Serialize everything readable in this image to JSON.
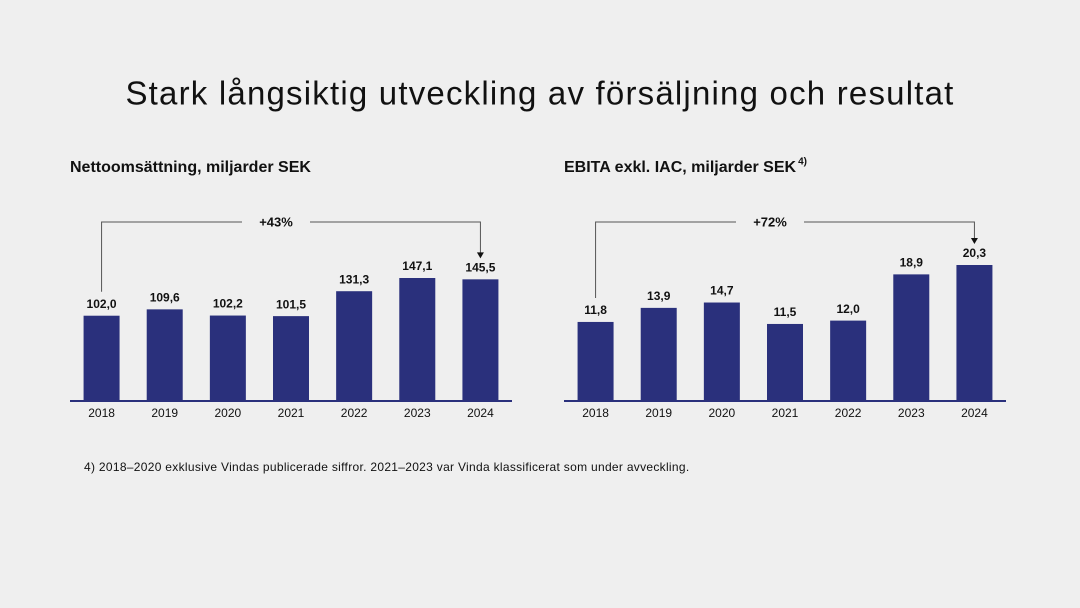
{
  "title": "Stark långsiktig utveckling av försäljning och resultat",
  "chart_data": [
    {
      "type": "bar",
      "title": "Nettoomsättning, miljarder SEK",
      "annotation": "+43%",
      "categories": [
        "2018",
        "2019",
        "2020",
        "2021",
        "2022",
        "2023",
        "2024"
      ],
      "values": [
        102.0,
        109.6,
        102.2,
        101.5,
        131.3,
        147.1,
        145.5
      ],
      "value_labels": [
        "102,0",
        "109,6",
        "102,2",
        "101,5",
        "131,3",
        "147,1",
        "145,5"
      ],
      "color": "#2a307c"
    },
    {
      "type": "bar",
      "title": "EBITA exkl. IAC, miljarder SEK",
      "title_note": "4)",
      "annotation": "+72%",
      "categories": [
        "2018",
        "2019",
        "2020",
        "2021",
        "2022",
        "2023",
        "2024"
      ],
      "values": [
        11.8,
        13.9,
        14.7,
        11.5,
        12.0,
        18.9,
        20.3
      ],
      "value_labels": [
        "11,8",
        "13,9",
        "14,7",
        "11,5",
        "12,0",
        "18,9",
        "20,3"
      ],
      "color": "#2a307c"
    }
  ],
  "footnote": "4) 2018–2020 exklusive Vindas publicerade siffror. 2021–2023 var Vinda klassificerat som under avveckling."
}
